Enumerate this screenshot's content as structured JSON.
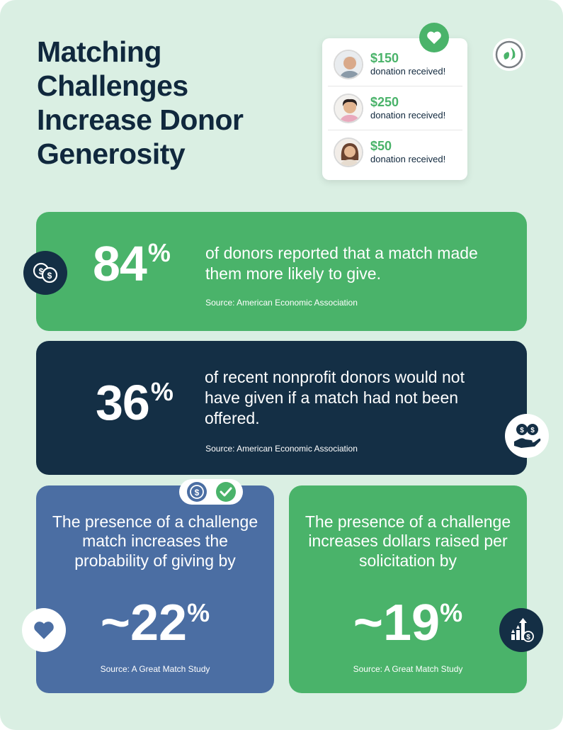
{
  "title_lines": [
    "Matching",
    "Challenges",
    "Increase Donor",
    "Generosity"
  ],
  "donations": [
    {
      "amount": "$150",
      "label": "donation received!"
    },
    {
      "amount": "$250",
      "label": "donation received!"
    },
    {
      "amount": "$50",
      "label": "donation received!"
    }
  ],
  "stat1": {
    "value": "84",
    "unit": "%",
    "text": "of donors reported that a match made them more likely to give.",
    "source": "Source: American Economic Association"
  },
  "stat2": {
    "value": "36",
    "unit": "%",
    "text": "of recent nonprofit donors would not have given if a match had not been offered.",
    "source": "Source: American Economic Association"
  },
  "stat3": {
    "text": "The presence of a challenge match increases the probability of giving by",
    "value": "~22",
    "unit": "%",
    "source": "Source: A Great Match Study"
  },
  "stat4": {
    "text": "The presence of a challenge increases dollars raised per solicitation by",
    "value": "~19",
    "unit": "%",
    "source": "Source: A Great Match Study"
  },
  "colors": {
    "background": "#daefe3",
    "green": "#4ab36a",
    "navy": "#142f45",
    "blue": "#4b6ea3"
  },
  "icons": [
    "heart-icon",
    "logo-icon",
    "coins-icon",
    "hand-money-icon",
    "dollar-check-icon",
    "growth-chart-icon"
  ]
}
